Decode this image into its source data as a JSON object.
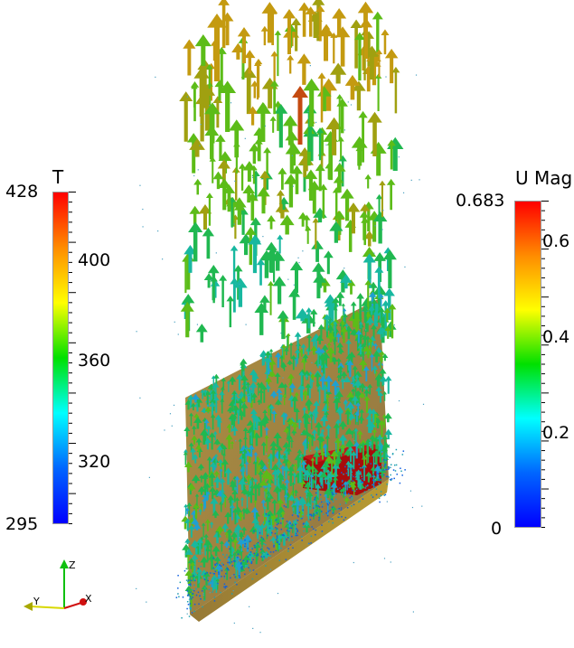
{
  "colorbars": {
    "temperature": {
      "title": "T",
      "max_label": "428",
      "min_label": "295",
      "ticks": [
        "400",
        "360",
        "320"
      ],
      "gradient": [
        "#ff0000",
        "#ff8c00",
        "#ffff00",
        "#00e000",
        "#00ffff",
        "#0066ff",
        "#0000ff"
      ]
    },
    "velocity": {
      "title": "U Mag",
      "max_label": "0.683",
      "min_label": "0",
      "ticks": [
        "0.6",
        "0.4",
        "0.2"
      ],
      "gradient": [
        "#ff0000",
        "#ff8c00",
        "#ffff00",
        "#00e000",
        "#00ffff",
        "#0066ff",
        "#0000ff"
      ]
    }
  },
  "orientation_axes": {
    "x_label": "X",
    "y_label": "Y",
    "z_label": "Z",
    "colors": {
      "x": "#d01010",
      "y": "#d8d800",
      "z": "#10c010"
    }
  },
  "scene": {
    "wall_color": "#9a7a2a",
    "block_color": "#b01010",
    "arrow_palette": [
      "#c49a10",
      "#a0a010",
      "#5cbc18",
      "#20b850",
      "#18b8a0",
      "#20a0d0",
      "#c44a10"
    ]
  }
}
